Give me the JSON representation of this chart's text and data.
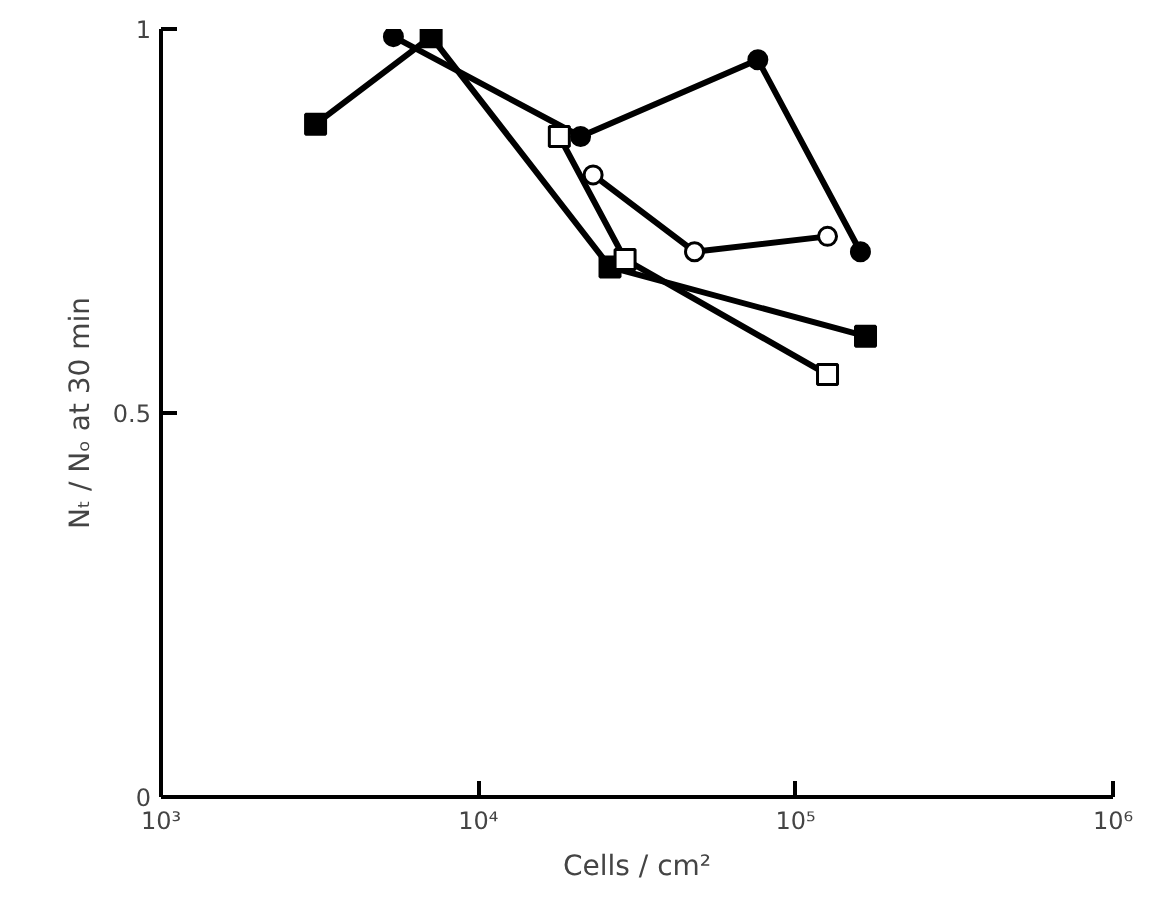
{
  "chart_data": {
    "type": "line",
    "xlabel": "Cells / cm²",
    "ylabel": "Nₜ / Nₒ at 30 min",
    "log": "x",
    "grid": false,
    "line_style": "solid",
    "xlim": [
      1000,
      1000000
    ],
    "xticks": [
      {
        "value": 1000,
        "label": "10³"
      },
      {
        "value": 10000,
        "label": "10⁴"
      },
      {
        "value": 100000,
        "label": "10⁵"
      },
      {
        "value": 1000000,
        "label": "10⁶"
      }
    ],
    "ylim": [
      0,
      1
    ],
    "yticks": [
      0,
      {
        "value": 0.5,
        "label": "0.5"
      },
      1
    ],
    "series": [
      {
        "color": "#000000",
        "marker": "circle",
        "x": [
          5400,
          21000,
          76000,
          160000
        ],
        "values": [
          0.99,
          0.86,
          0.96,
          0.71
        ]
      },
      {
        "color": "#000000",
        "marker": "square",
        "x": [
          3070,
          7100,
          26000,
          166000
        ],
        "values": [
          0.876,
          0.99,
          0.69,
          0.6
        ]
      },
      {
        "color": "#000000",
        "marker": "square_open",
        "x": [
          18000,
          29000,
          126000
        ],
        "values": [
          0.86,
          0.7,
          0.55
        ]
      },
      {
        "color": "#000000",
        "marker": "circle_open",
        "x": [
          23000,
          48000,
          126000
        ],
        "values": [
          0.81,
          0.71,
          0.73
        ]
      }
    ]
  }
}
